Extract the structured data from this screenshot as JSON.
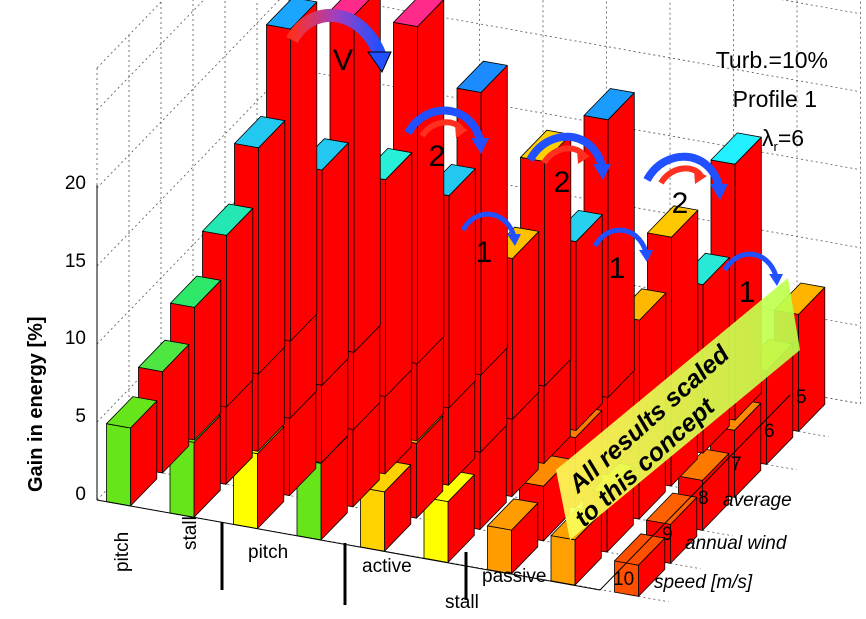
{
  "chart_data": {
    "type": "bar3d",
    "title": "",
    "zlabel": "Gain in energy  [%]",
    "zlim": [
      0,
      20
    ],
    "z_ticks": [
      "0",
      "5",
      "10",
      "15",
      "20"
    ],
    "y_ticks": [
      "5",
      "6",
      "7",
      "8",
      "9",
      "10"
    ],
    "y_label_lines": [
      "average",
      "annual wind",
      "speed  [m/s]"
    ],
    "x_labels": [
      "pitch",
      "stall",
      "pitch",
      "active",
      "passive"
    ],
    "x_label_extra": "stall",
    "annotations": {
      "turb": "Turb.=10%",
      "profile": "Profile 1",
      "lambda_base": "λ",
      "lambda_sub": "r",
      "lambda_value": "=6",
      "v_label": "V",
      "two_label": "2",
      "one_label": "1",
      "scaled_line1": "All results scaled",
      "scaled_line2": "to this concept"
    },
    "wind_speeds": [
      10,
      9,
      8,
      7,
      6,
      5
    ],
    "series": [
      {
        "values": [
          5.0,
          6.5,
          8.5,
          11.0,
          14.5,
          20.0
        ],
        "colors": [
          "#66e61a",
          "#4ee640",
          "#2ee86a",
          "#24e8b4",
          "#22c8f0",
          "#1aa6ff"
        ]
      },
      {
        "values": [
          4.8,
          6.2,
          8.1,
          10.4,
          13.8,
          21.6
        ],
        "colors": [
          "#66e61a",
          "#4ee640",
          "#2ee86a",
          "#24e8b4",
          "#22c8f0",
          "#ff2a8a"
        ]
      },
      {
        "values": [
          4.8,
          6.2,
          8.1,
          10.4,
          13.9,
          21.6
        ],
        "colors": [
          "#ffff00",
          "#eaff20",
          "#a0f040",
          "#40e870",
          "#28f0d8",
          "#ff2a8a"
        ]
      },
      {
        "values": [
          4.9,
          6.3,
          8.1,
          10.3,
          13.6,
          18.1
        ],
        "colors": [
          "#66e61a",
          "#4ee640",
          "#2ee86a",
          "#24e8b4",
          "#22c8f0",
          "#1a8cff"
        ]
      },
      {
        "values": [
          3.8,
          4.8,
          6.1,
          7.8,
          10.3,
          14.4
        ],
        "colors": [
          "#ffd200",
          "#ffb400",
          "#ff9c00",
          "#ff8c00",
          "#ffc000",
          "#ffd000"
        ]
      },
      {
        "values": [
          3.9,
          5.1,
          6.6,
          8.8,
          12.1,
          17.8
        ],
        "colors": [
          "#ffff00",
          "#eaff20",
          "#a0f040",
          "#40e870",
          "#28d0f0",
          "#1a9cff"
        ]
      },
      {
        "values": [
          2.8,
          3.5,
          4.5,
          5.8,
          7.8,
          11.0
        ],
        "colors": [
          "#ff9c00",
          "#ff8c00",
          "#ff7c00",
          "#ffa000",
          "#ffb800",
          "#ffc800"
        ]
      },
      {
        "values": [
          2.9,
          3.8,
          5.3,
          7.5,
          10.8,
          16.4
        ],
        "colors": [
          "#ffa000",
          "#ffb000",
          "#e8f020",
          "#50e870",
          "#28e8d8",
          "#20f0ff"
        ]
      },
      {
        "values": [
          2.0,
          2.5,
          3.2,
          4.3,
          6.0,
          7.5
        ],
        "colors": [
          "#ff5000",
          "#ff6000",
          "#ff7800",
          "#ff8c00",
          "#ffa000",
          "#ffb400"
        ]
      }
    ]
  }
}
